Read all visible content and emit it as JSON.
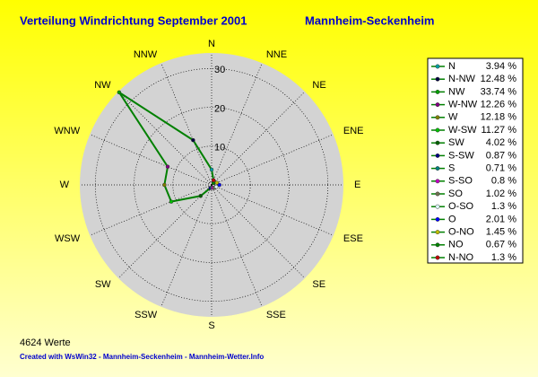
{
  "chart_data": {
    "type": "radar",
    "title": "Verteilung Windrichtung  September 2001",
    "subtitle": "Mannheim-Seckenheim",
    "categories": [
      "N",
      "NNE",
      "NE",
      "ENE",
      "E",
      "ESE",
      "SE",
      "SSE",
      "S",
      "SSW",
      "SW",
      "WSW",
      "W",
      "WNW",
      "NW",
      "NNW"
    ],
    "legend_names": [
      "N",
      "N-NW",
      "NW",
      "W-NW",
      "W",
      "W-SW",
      "SW",
      "S-SW",
      "S",
      "S-SO",
      "SO",
      "O-SO",
      "O",
      "O-NO",
      "NO",
      "N-NO"
    ],
    "values": [
      3.94,
      12.48,
      33.74,
      12.26,
      12.18,
      11.27,
      4.02,
      0.87,
      0.71,
      0.8,
      1.02,
      1.3,
      2.01,
      1.45,
      0.67,
      1.3
    ],
    "value_labels": [
      "3.94 %",
      "12.48 %",
      "33.74 %",
      "12.26 %",
      "12.18 %",
      "11.27 %",
      "4.02 %",
      "0.87 %",
      "0.71 %",
      "0.8 %",
      "1.02 %",
      "1.3 %",
      "2.01 %",
      "1.45 %",
      "0.67 %",
      "1.3 %"
    ],
    "marker_colors": [
      "#00a0a0",
      "#000040",
      "#00a000",
      "#800080",
      "#808000",
      "#00c000",
      "#006000",
      "#000080",
      "#008080",
      "#c000c0",
      "#707050",
      "#e0ffff",
      "#0000ff",
      "#c0c000",
      "#008000",
      "#c00000"
    ],
    "color": "#008000",
    "rlim": [
      0,
      34
    ],
    "rticks": [
      10,
      20,
      30
    ],
    "footer_count": "4624 Werte",
    "footer": "Created with WsWin32  -  Mannheim-Seckenheim  -  Mannheim-Wetter.Info"
  }
}
